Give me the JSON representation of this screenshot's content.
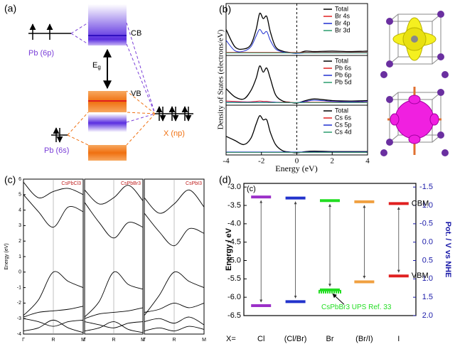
{
  "panel_labels": [
    "(a)",
    "(b)",
    "(c)",
    "(d)"
  ],
  "diagram": {
    "pb_6p": "Pb (6p)",
    "cb": "CB",
    "eg": "E",
    "eg_sub": "g",
    "vb": "VB",
    "x_np": "X (np)",
    "pb_6s": "Pb (6s)"
  },
  "dos_axes": {
    "xlabel": "Energy (eV)",
    "ylabel": "Density of States (electrons/eV)"
  },
  "band_axes": {
    "ylabel": "Energy (eV)"
  },
  "chart_data": [
    {
      "type": "dos",
      "x": [
        -4,
        -3.5,
        -3,
        -2.6,
        -2.3,
        -2.1,
        -1.9,
        -1.7,
        -1.5,
        -1.2,
        -0.8,
        -0.4,
        0,
        0.5,
        1,
        2,
        3,
        4
      ],
      "xlim": [
        -4,
        4
      ],
      "ylim": [
        0,
        1
      ],
      "vline": 0,
      "series": [
        {
          "name": "Total",
          "color": "#000000",
          "values": [
            0.55,
            0.15,
            0.1,
            0.2,
            0.55,
            0.92,
            0.8,
            0.85,
            0.5,
            0.15,
            0.05,
            0.02,
            0,
            0.05,
            0.04,
            0.05,
            0.04,
            0.05
          ]
        },
        {
          "name": "Br 4s",
          "color": "#e02020",
          "values": [
            0.02,
            0.02,
            0.02,
            0.02,
            0.02,
            0.02,
            0.02,
            0.02,
            0.02,
            0.02,
            0.02,
            0.02,
            0.02,
            0.02,
            0.02,
            0.02,
            0.02,
            0.02
          ]
        },
        {
          "name": "Br 4p",
          "color": "#1f2fd0",
          "values": [
            0.3,
            0.06,
            0.05,
            0.15,
            0.4,
            0.55,
            0.45,
            0.5,
            0.3,
            0.1,
            0.03,
            0.01,
            0,
            0.01,
            0.01,
            0.01,
            0.01,
            0.01
          ]
        },
        {
          "name": "Br 3d",
          "color": "#2a9d6e",
          "values": [
            0.01,
            0.01,
            0.01,
            0.01,
            0.01,
            0.01,
            0.01,
            0.01,
            0.01,
            0.01,
            0.01,
            0.01,
            0.01,
            0.01,
            0.01,
            0.01,
            0.01,
            0.01
          ]
        }
      ]
    },
    {
      "type": "dos",
      "x": [
        -4,
        -3.5,
        -3,
        -2.6,
        -2.3,
        -2.1,
        -1.9,
        -1.7,
        -1.5,
        -1.2,
        -0.8,
        -0.4,
        0,
        0.5,
        1,
        2,
        3,
        4
      ],
      "xlim": [
        -4,
        4
      ],
      "ylim": [
        0,
        1
      ],
      "vline": 0,
      "series": [
        {
          "name": "Total",
          "color": "#000000",
          "values": [
            0.35,
            0.15,
            0.1,
            0.3,
            0.6,
            0.9,
            0.75,
            0.85,
            0.6,
            0.2,
            0.05,
            0.02,
            0,
            0.06,
            0.1,
            0.06,
            0.05,
            0.06
          ]
        },
        {
          "name": "Pb 6s",
          "color": "#e02020",
          "values": [
            0.05,
            0.04,
            0.03,
            0.03,
            0.04,
            0.05,
            0.04,
            0.04,
            0.03,
            0.02,
            0.02,
            0.02,
            0.01,
            0.02,
            0.02,
            0.02,
            0.02,
            0.02
          ]
        },
        {
          "name": "Pb 6p",
          "color": "#1f2fd0",
          "values": [
            0.02,
            0.02,
            0.02,
            0.02,
            0.02,
            0.02,
            0.02,
            0.02,
            0.02,
            0.02,
            0.01,
            0.01,
            0.01,
            0.04,
            0.07,
            0.04,
            0.03,
            0.04
          ]
        },
        {
          "name": "Pb 5d",
          "color": "#2a9d6e",
          "values": [
            0.01,
            0.01,
            0.01,
            0.01,
            0.01,
            0.01,
            0.01,
            0.01,
            0.01,
            0.01,
            0.01,
            0.01,
            0.01,
            0.01,
            0.01,
            0.01,
            0.01,
            0.01
          ]
        }
      ]
    },
    {
      "type": "dos",
      "x": [
        -4,
        -3.5,
        -3,
        -2.6,
        -2.3,
        -2.1,
        -1.9,
        -1.7,
        -1.5,
        -1.2,
        -0.8,
        -0.4,
        0,
        0.5,
        1,
        2,
        3,
        4
      ],
      "xlim": [
        -4,
        4
      ],
      "ylim": [
        0,
        1
      ],
      "vline": 0,
      "xticks": [
        -4,
        -2,
        0,
        2,
        4
      ],
      "series": [
        {
          "name": "Total",
          "color": "#000000",
          "values": [
            0.4,
            0.3,
            0.2,
            0.35,
            0.7,
            0.9,
            0.8,
            0.8,
            0.5,
            0.2,
            0.05,
            0.02,
            0,
            0.03,
            0.04,
            0.03,
            0.03,
            0.03
          ]
        },
        {
          "name": "Cs 6s",
          "color": "#e02020",
          "values": [
            0.01,
            0.01,
            0.01,
            0.01,
            0.01,
            0.01,
            0.01,
            0.01,
            0.01,
            0.01,
            0.01,
            0.01,
            0.01,
            0.01,
            0.01,
            0.01,
            0.01,
            0.01
          ]
        },
        {
          "name": "Cs 5p",
          "color": "#1f2fd0",
          "values": [
            0.02,
            0.02,
            0.02,
            0.02,
            0.02,
            0.02,
            0.02,
            0.02,
            0.02,
            0.02,
            0.02,
            0.02,
            0.02,
            0.02,
            0.02,
            0.02,
            0.02,
            0.02
          ]
        },
        {
          "name": "Cs 4d",
          "color": "#2a9d6e",
          "values": [
            0.01,
            0.01,
            0.01,
            0.01,
            0.01,
            0.01,
            0.01,
            0.01,
            0.01,
            0.01,
            0.01,
            0.01,
            0.01,
            0.01,
            0.01,
            0.01,
            0.01,
            0.01
          ]
        }
      ]
    },
    {
      "type": "bands",
      "title": "CsPbCl3",
      "categories": [
        "Γ",
        null,
        "R",
        null,
        "M"
      ],
      "color": "#000000",
      "ylim": [
        -4,
        6
      ],
      "yticks": [
        -4,
        -3,
        -2,
        -1,
        0,
        1,
        2,
        3,
        4,
        5,
        6
      ],
      "series": [
        {
          "values": [
            -2.8,
            -1.8,
            0.0,
            -0.6,
            -1.0
          ]
        },
        {
          "values": [
            -2.9,
            -2.6,
            -2.5,
            -2.4,
            -2.2
          ]
        },
        {
          "values": [
            -3.0,
            -3.2,
            -3.5,
            -3.2,
            -3.1
          ]
        },
        {
          "values": [
            -3.8,
            -3.6,
            -3.1,
            -3.6,
            -3.9
          ]
        },
        {
          "values": [
            5.0,
            3.9,
            2.9,
            4.2,
            3.9
          ]
        },
        {
          "values": [
            5.8,
            4.8,
            5.2,
            5.4,
            5.0
          ]
        }
      ]
    },
    {
      "type": "bands",
      "title": "CsPbBr3",
      "categories": [
        "Γ",
        null,
        "R",
        null,
        "M"
      ],
      "color": "#000000",
      "ylim": [
        -4,
        6
      ],
      "series": [
        {
          "values": [
            -2.9,
            -1.9,
            0.0,
            -0.8,
            -1.1
          ]
        },
        {
          "values": [
            -3.0,
            -2.7,
            -2.6,
            -2.5,
            -2.3
          ]
        },
        {
          "values": [
            -3.2,
            -3.4,
            -3.6,
            -3.3,
            -3.2
          ]
        },
        {
          "values": [
            -3.8,
            -3.6,
            -3.2,
            -3.7,
            -3.9
          ]
        },
        {
          "values": [
            4.5,
            3.2,
            2.2,
            3.2,
            2.9
          ]
        },
        {
          "values": [
            5.3,
            4.4,
            4.8,
            5.6,
            4.6
          ]
        }
      ]
    },
    {
      "type": "bands",
      "title": "CsPbI3",
      "categories": [
        "Γ",
        null,
        "R",
        null,
        "M"
      ],
      "color": "#000000",
      "ylim": [
        -4,
        6
      ],
      "series": [
        {
          "values": [
            -2.8,
            -1.5,
            0.0,
            -0.6,
            -1.0
          ]
        },
        {
          "values": [
            -2.6,
            -2.4,
            -2.0,
            -2.3,
            -2.0
          ]
        },
        {
          "values": [
            -3.2,
            -3.0,
            -3.3,
            -2.9,
            -3.4
          ]
        },
        {
          "values": [
            -3.8,
            -3.6,
            -3.8,
            -3.5,
            -3.7
          ]
        },
        {
          "values": [
            3.8,
            2.6,
            1.7,
            2.8,
            2.5
          ]
        },
        {
          "values": [
            4.8,
            3.8,
            4.4,
            5.3,
            4.2
          ]
        }
      ]
    },
    {
      "type": "levels",
      "annotation": "(c)",
      "xlabel": "X=",
      "categories": [
        "Cl",
        "(Cl/Br)",
        "Br",
        "(Br/I)",
        "I"
      ],
      "colors": [
        "#9b30c8",
        "#2233cc",
        "#22dd22",
        "#f0a040",
        "#e02020"
      ],
      "ylabel": "Energy / eV",
      "y2label": "Pot. / V vs NHE",
      "ylim": [
        -6.5,
        -2.9
      ],
      "yticks": [
        {
          "value": -3.0,
          "label": "-3.0"
        },
        -3.5,
        {
          "value": -4.0,
          "label": "-4.0"
        },
        -4.5,
        {
          "value": -5.0,
          "label": "-5.0"
        },
        -5.5,
        {
          "value": -6.0,
          "label": "-6.0"
        },
        -6.5
      ],
      "y2lim": [
        2.0,
        -1.6
      ],
      "y2ticks": [
        -1.5,
        {
          "value": -1.0,
          "label": "-1.0"
        },
        -0.5,
        {
          "value": 0.0,
          "label": "0.0"
        },
        0.5,
        {
          "value": 1.0,
          "label": "1.0"
        },
        1.5,
        {
          "value": 2.0,
          "label": "2.0"
        }
      ],
      "series": [
        {
          "name": "CBM",
          "values": [
            -3.27,
            -3.3,
            -3.37,
            -3.4,
            -3.45
          ]
        },
        {
          "name": "VBM",
          "values": [
            -6.23,
            -6.12,
            -5.8,
            -5.58,
            -5.42
          ]
        }
      ],
      "reference": {
        "label": "CsPbBr3 UPS Ref. 33",
        "category": "Br",
        "value": -5.85,
        "color": "#22dd22"
      }
    }
  ]
}
